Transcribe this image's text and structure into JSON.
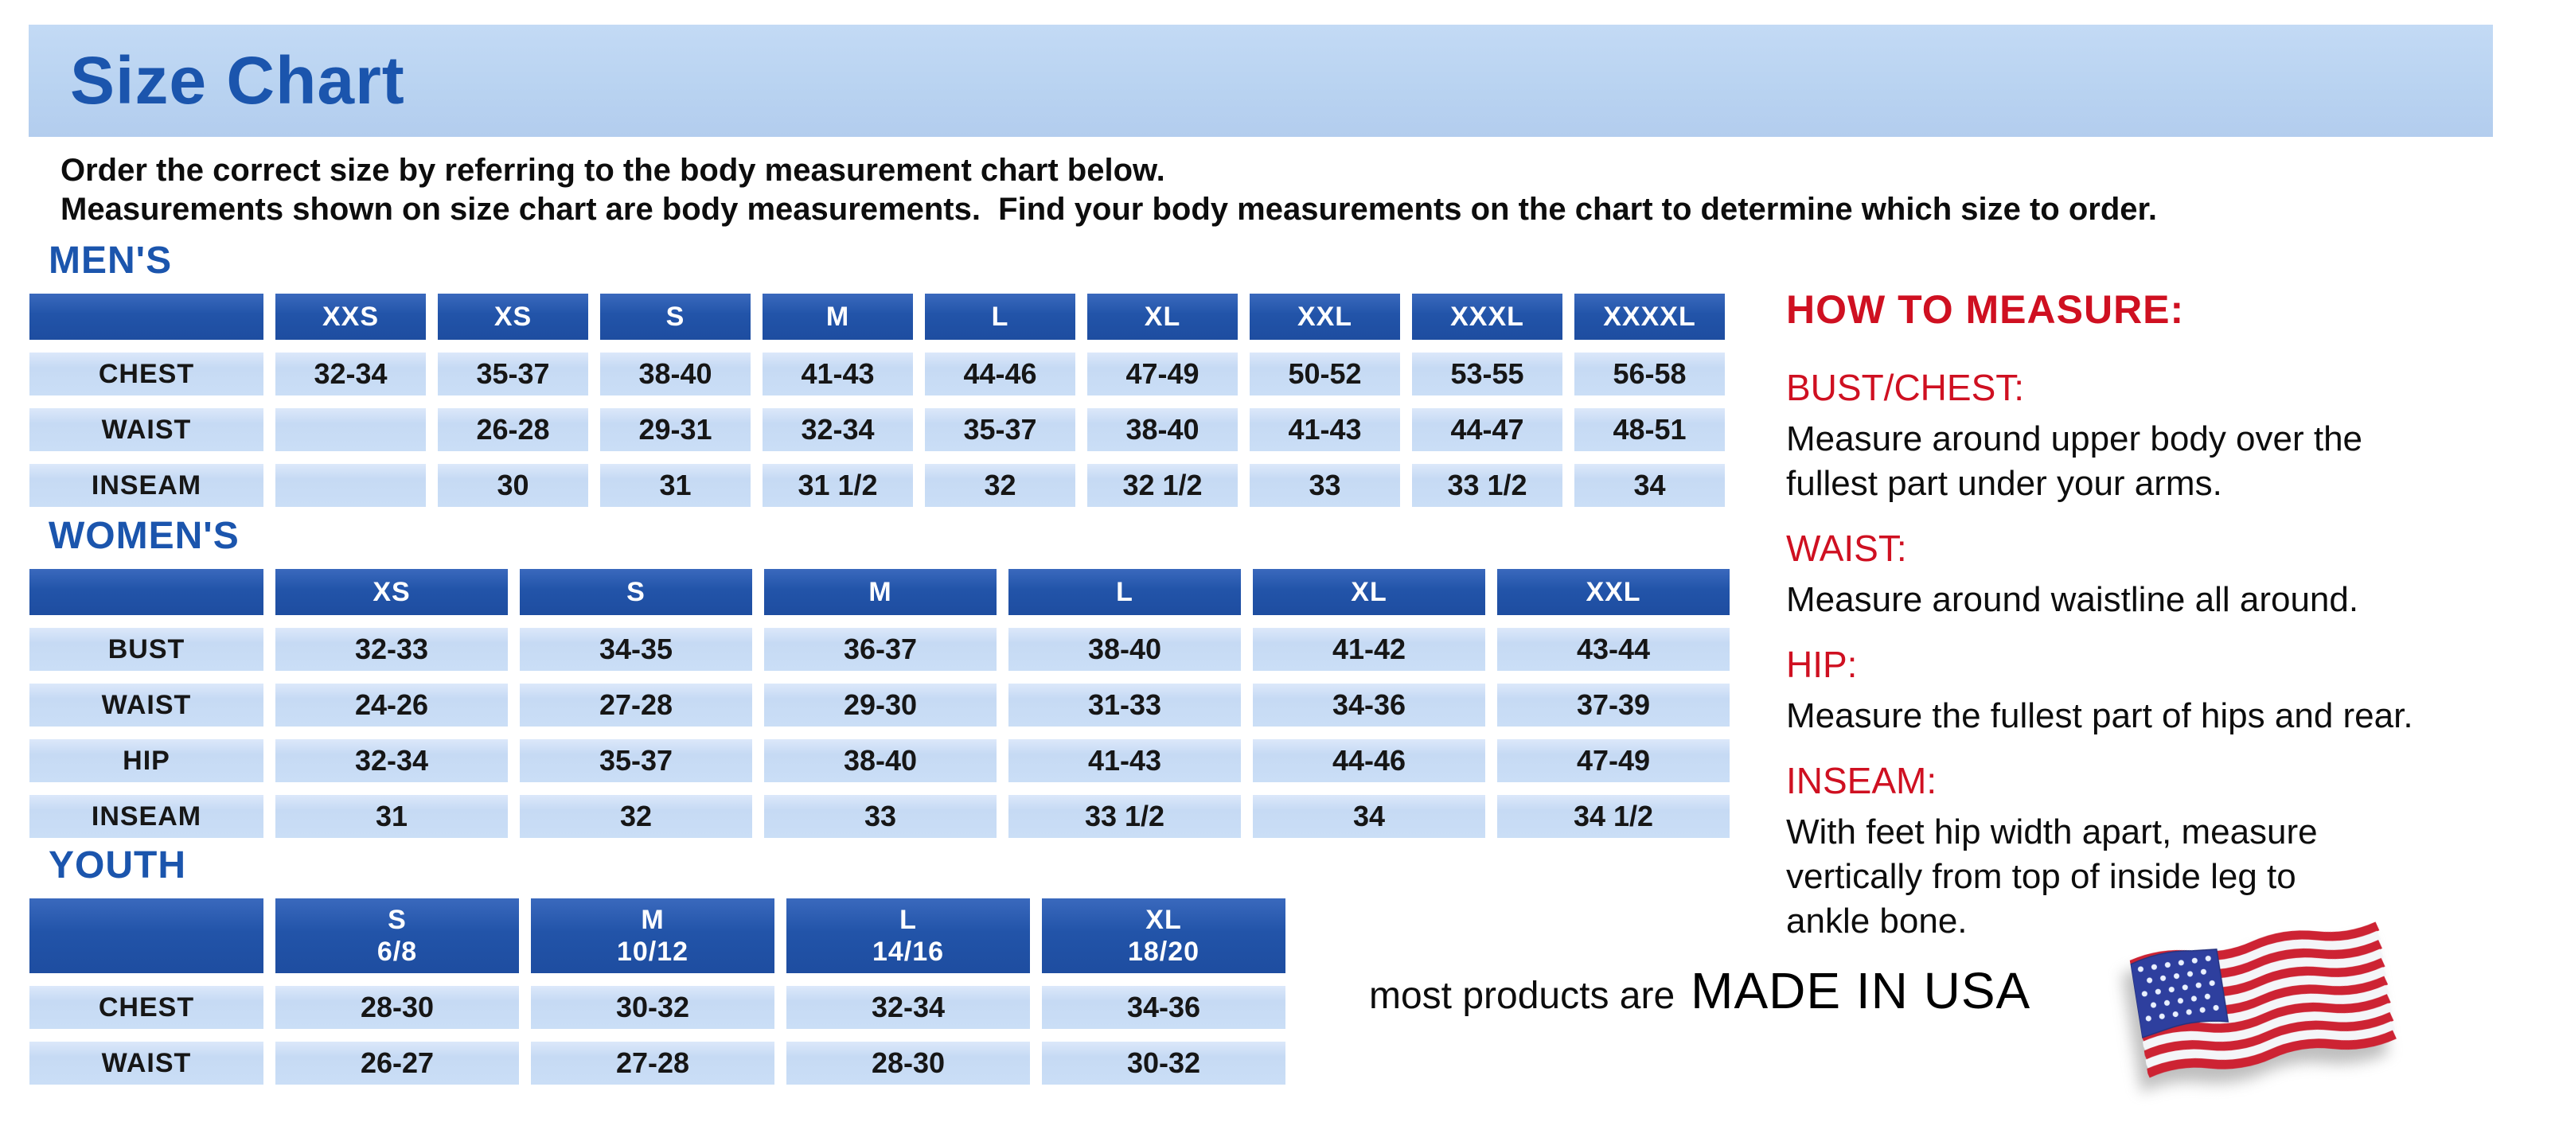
{
  "page": {
    "title": "Size Chart",
    "intro_line1": "Order the correct size by referring to the body measurement chart below.",
    "intro_line2": "Measurements shown on size chart are body measurements.  Find your body measurements on the chart to determine which size to order."
  },
  "tables": [
    {
      "id": "mens",
      "heading": "MEN'S",
      "columns": [
        "XXS",
        "XS",
        "S",
        "M",
        "L",
        "XL",
        "XXL",
        "XXXL",
        "XXXXL"
      ],
      "rows": [
        {
          "label": "CHEST",
          "values": [
            "32-34",
            "35-37",
            "38-40",
            "41-43",
            "44-46",
            "47-49",
            "50-52",
            "53-55",
            "56-58"
          ]
        },
        {
          "label": "WAIST",
          "values": [
            "",
            "26-28",
            "29-31",
            "32-34",
            "35-37",
            "38-40",
            "41-43",
            "44-47",
            "48-51"
          ]
        },
        {
          "label": "INSEAM",
          "values": [
            "",
            "30",
            "31",
            "31 1/2",
            "32",
            "32 1/2",
            "33",
            "33 1/2",
            "34"
          ]
        }
      ]
    },
    {
      "id": "womens",
      "heading": "WOMEN'S",
      "columns": [
        "XS",
        "S",
        "M",
        "L",
        "XL",
        "XXL"
      ],
      "rows": [
        {
          "label": "BUST",
          "values": [
            "32-33",
            "34-35",
            "36-37",
            "38-40",
            "41-42",
            "43-44"
          ]
        },
        {
          "label": "WAIST",
          "values": [
            "24-26",
            "27-28",
            "29-30",
            "31-33",
            "34-36",
            "37-39"
          ]
        },
        {
          "label": "HIP",
          "values": [
            "32-34",
            "35-37",
            "38-40",
            "41-43",
            "44-46",
            "47-49"
          ]
        },
        {
          "label": "INSEAM",
          "values": [
            "31",
            "32",
            "33",
            "33 1/2",
            "34",
            "34 1/2"
          ]
        }
      ]
    },
    {
      "id": "youth",
      "heading": "YOUTH",
      "columns": [
        {
          "size": "S",
          "range": "6/8"
        },
        {
          "size": "M",
          "range": "10/12"
        },
        {
          "size": "L",
          "range": "14/16"
        },
        {
          "size": "XL",
          "range": "18/20"
        }
      ],
      "rows": [
        {
          "label": "CHEST",
          "values": [
            "28-30",
            "30-32",
            "32-34",
            "34-36"
          ]
        },
        {
          "label": "WAIST",
          "values": [
            "26-27",
            "27-28",
            "28-30",
            "30-32"
          ]
        }
      ]
    }
  ],
  "how_to_measure": {
    "heading": "HOW TO MEASURE:",
    "items": [
      {
        "label": "BUST/CHEST:",
        "text": "Measure around upper body over the\nfullest part under your arms."
      },
      {
        "label": "WAIST:",
        "text": "Measure around waistline all around."
      },
      {
        "label": "HIP:",
        "text": "Measure the fullest part of hips and rear."
      },
      {
        "label": "INSEAM:",
        "text": "With feet hip width apart, measure\nvertically from top of inside leg to\nankle bone."
      }
    ]
  },
  "footer": {
    "prefix": "most products are",
    "emphasis": "MADE IN USA",
    "flag_icon": "usa-flag-icon"
  },
  "colors": {
    "banner_bg": "#b9d3f1",
    "heading_blue": "#1b55ad",
    "table_header_blue": "#2254a9",
    "cell_light_blue": "#cadef6",
    "accent_red": "#cf1021",
    "text_black": "#0d0d0d",
    "flag_red": "#cd2333",
    "flag_white": "#f4f5f8",
    "flag_canton_blue": "#2e3f9e"
  }
}
